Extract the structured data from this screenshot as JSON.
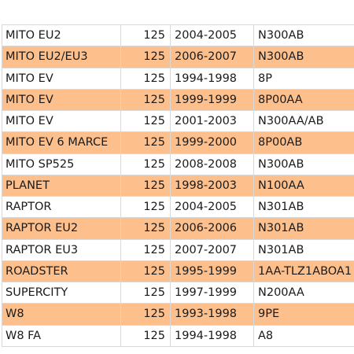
{
  "colors": {
    "stripe": "#fdc08c",
    "background": "#ffffff",
    "grid_line": "#d9d9d9",
    "text": "#1a1a1a"
  },
  "table": {
    "rows": [
      {
        "model": "MITO EU2",
        "cc": "125",
        "years": "2004-2005",
        "code": "N300AB",
        "highlighted": false
      },
      {
        "model": "MITO EU2/EU3",
        "cc": "125",
        "years": "2006-2007",
        "code": "N300AB",
        "highlighted": true
      },
      {
        "model": "MITO EV",
        "cc": "125",
        "years": "1994-1998",
        "code": "8P",
        "highlighted": false
      },
      {
        "model": "MITO EV",
        "cc": "125",
        "years": "1999-1999",
        "code": "8P00AA",
        "highlighted": true
      },
      {
        "model": "MITO EV",
        "cc": "125",
        "years": "2001-2003",
        "code": "N300AA/AB",
        "highlighted": false
      },
      {
        "model": "MITO EV 6 MARCE",
        "cc": "125",
        "years": "1999-2000",
        "code": "8P00AB",
        "highlighted": true
      },
      {
        "model": "MITO SP525",
        "cc": "125",
        "years": "2008-2008",
        "code": "N300AB",
        "highlighted": false
      },
      {
        "model": "PLANET",
        "cc": "125",
        "years": "1998-2003",
        "code": "N100AA",
        "highlighted": true
      },
      {
        "model": "RAPTOR",
        "cc": "125",
        "years": "2004-2005",
        "code": "N301AB",
        "highlighted": false
      },
      {
        "model": "RAPTOR EU2",
        "cc": "125",
        "years": "2006-2006",
        "code": "N301AB",
        "highlighted": true
      },
      {
        "model": "RAPTOR EU3",
        "cc": "125",
        "years": "2007-2007",
        "code": "N301AB",
        "highlighted": false
      },
      {
        "model": "ROADSTER",
        "cc": "125",
        "years": "1995-1999",
        "code": "1AA-TLZ1ABOA1",
        "highlighted": true
      },
      {
        "model": "SUPERCITY",
        "cc": "125",
        "years": "1997-1999",
        "code": "N200AA",
        "highlighted": false
      },
      {
        "model": "W8",
        "cc": "125",
        "years": "1993-1998",
        "code": "9PE",
        "highlighted": true
      },
      {
        "model": "W8 FA",
        "cc": "125",
        "years": "1994-1998",
        "code": "A8",
        "highlighted": false
      }
    ]
  }
}
